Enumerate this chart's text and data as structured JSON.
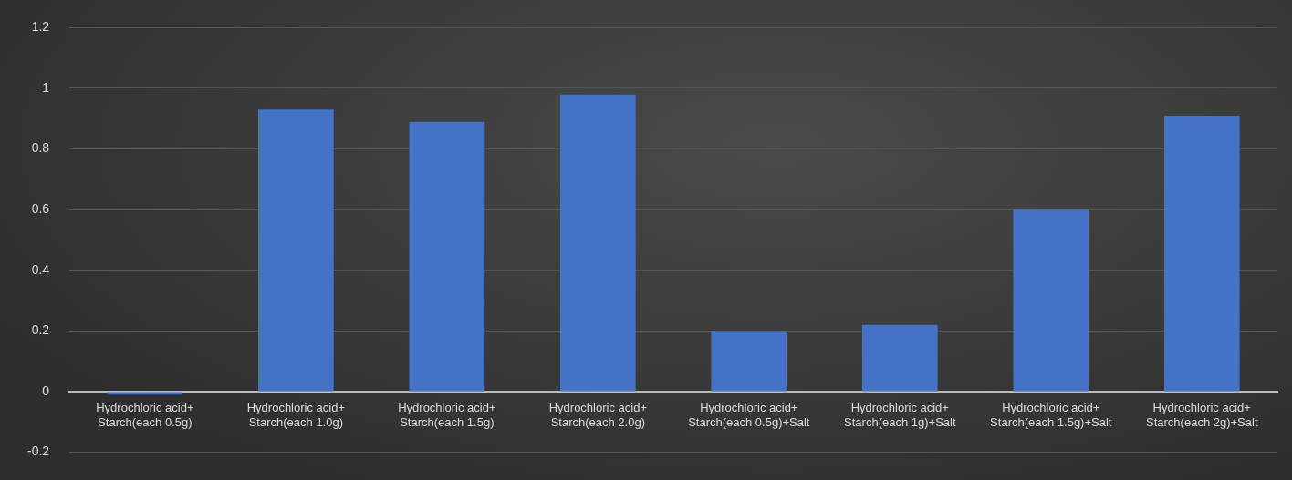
{
  "chart_data": {
    "type": "bar",
    "categories": [
      "Hydrochloric acid+\nStarch(each 0.5g)",
      "Hydrochloric acid+\nStarch(each 1.0g)",
      "Hydrochloric acid+\nStarch(each 1.5g)",
      "Hydrochloric acid+\nStarch(each 2.0g)",
      "Hydrochloric acid+\nStarch(each 0.5g)+Salt",
      "Hydrochloric acid+\nStarch(each 1g)+Salt",
      "Hydrochloric acid+\nStarch(each 1.5g)+Salt",
      "Hydrochloric acid+\nStarch(each 2g)+Salt"
    ],
    "values": [
      -0.01,
      0.93,
      0.89,
      0.98,
      0.2,
      0.22,
      0.6,
      0.91
    ],
    "color": "#4472c4",
    "ylim": [
      -0.2,
      1.2
    ],
    "yticks": [
      -0.2,
      0,
      0.2,
      0.4,
      0.6,
      0.8,
      1,
      1.2
    ],
    "grid": "y"
  }
}
